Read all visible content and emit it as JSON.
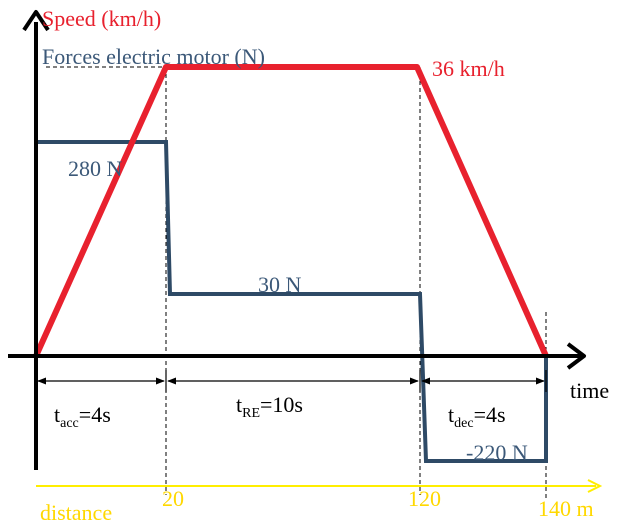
{
  "labels": {
    "speed_axis": "Speed (km/h)",
    "force_axis": "Forces electric motor (N)",
    "max_speed": "36 km/h",
    "force_acc": "280 N",
    "force_cruise": "30 N",
    "force_dec": "-220 N",
    "time_axis": "time",
    "distance_axis": "distance",
    "dist_1": "20",
    "dist_2": "120",
    "dist_3": "140 m"
  },
  "phases": {
    "acc": {
      "t": "t",
      "sub": "acc",
      "rest": "=4s"
    },
    "re": {
      "t": "t",
      "sub": "RE",
      "rest": "=10s"
    },
    "dec": {
      "t": "t",
      "sub": "dec",
      "rest": "=4s"
    }
  },
  "colors": {
    "speed_line": "#e8212e",
    "force_line": "#2e4a66",
    "axis": "#000000",
    "distance_axis": "#ffee00",
    "speed_text": "#e8212e",
    "force_text": "#3b5878",
    "distance_text": "#ffd800"
  }
}
